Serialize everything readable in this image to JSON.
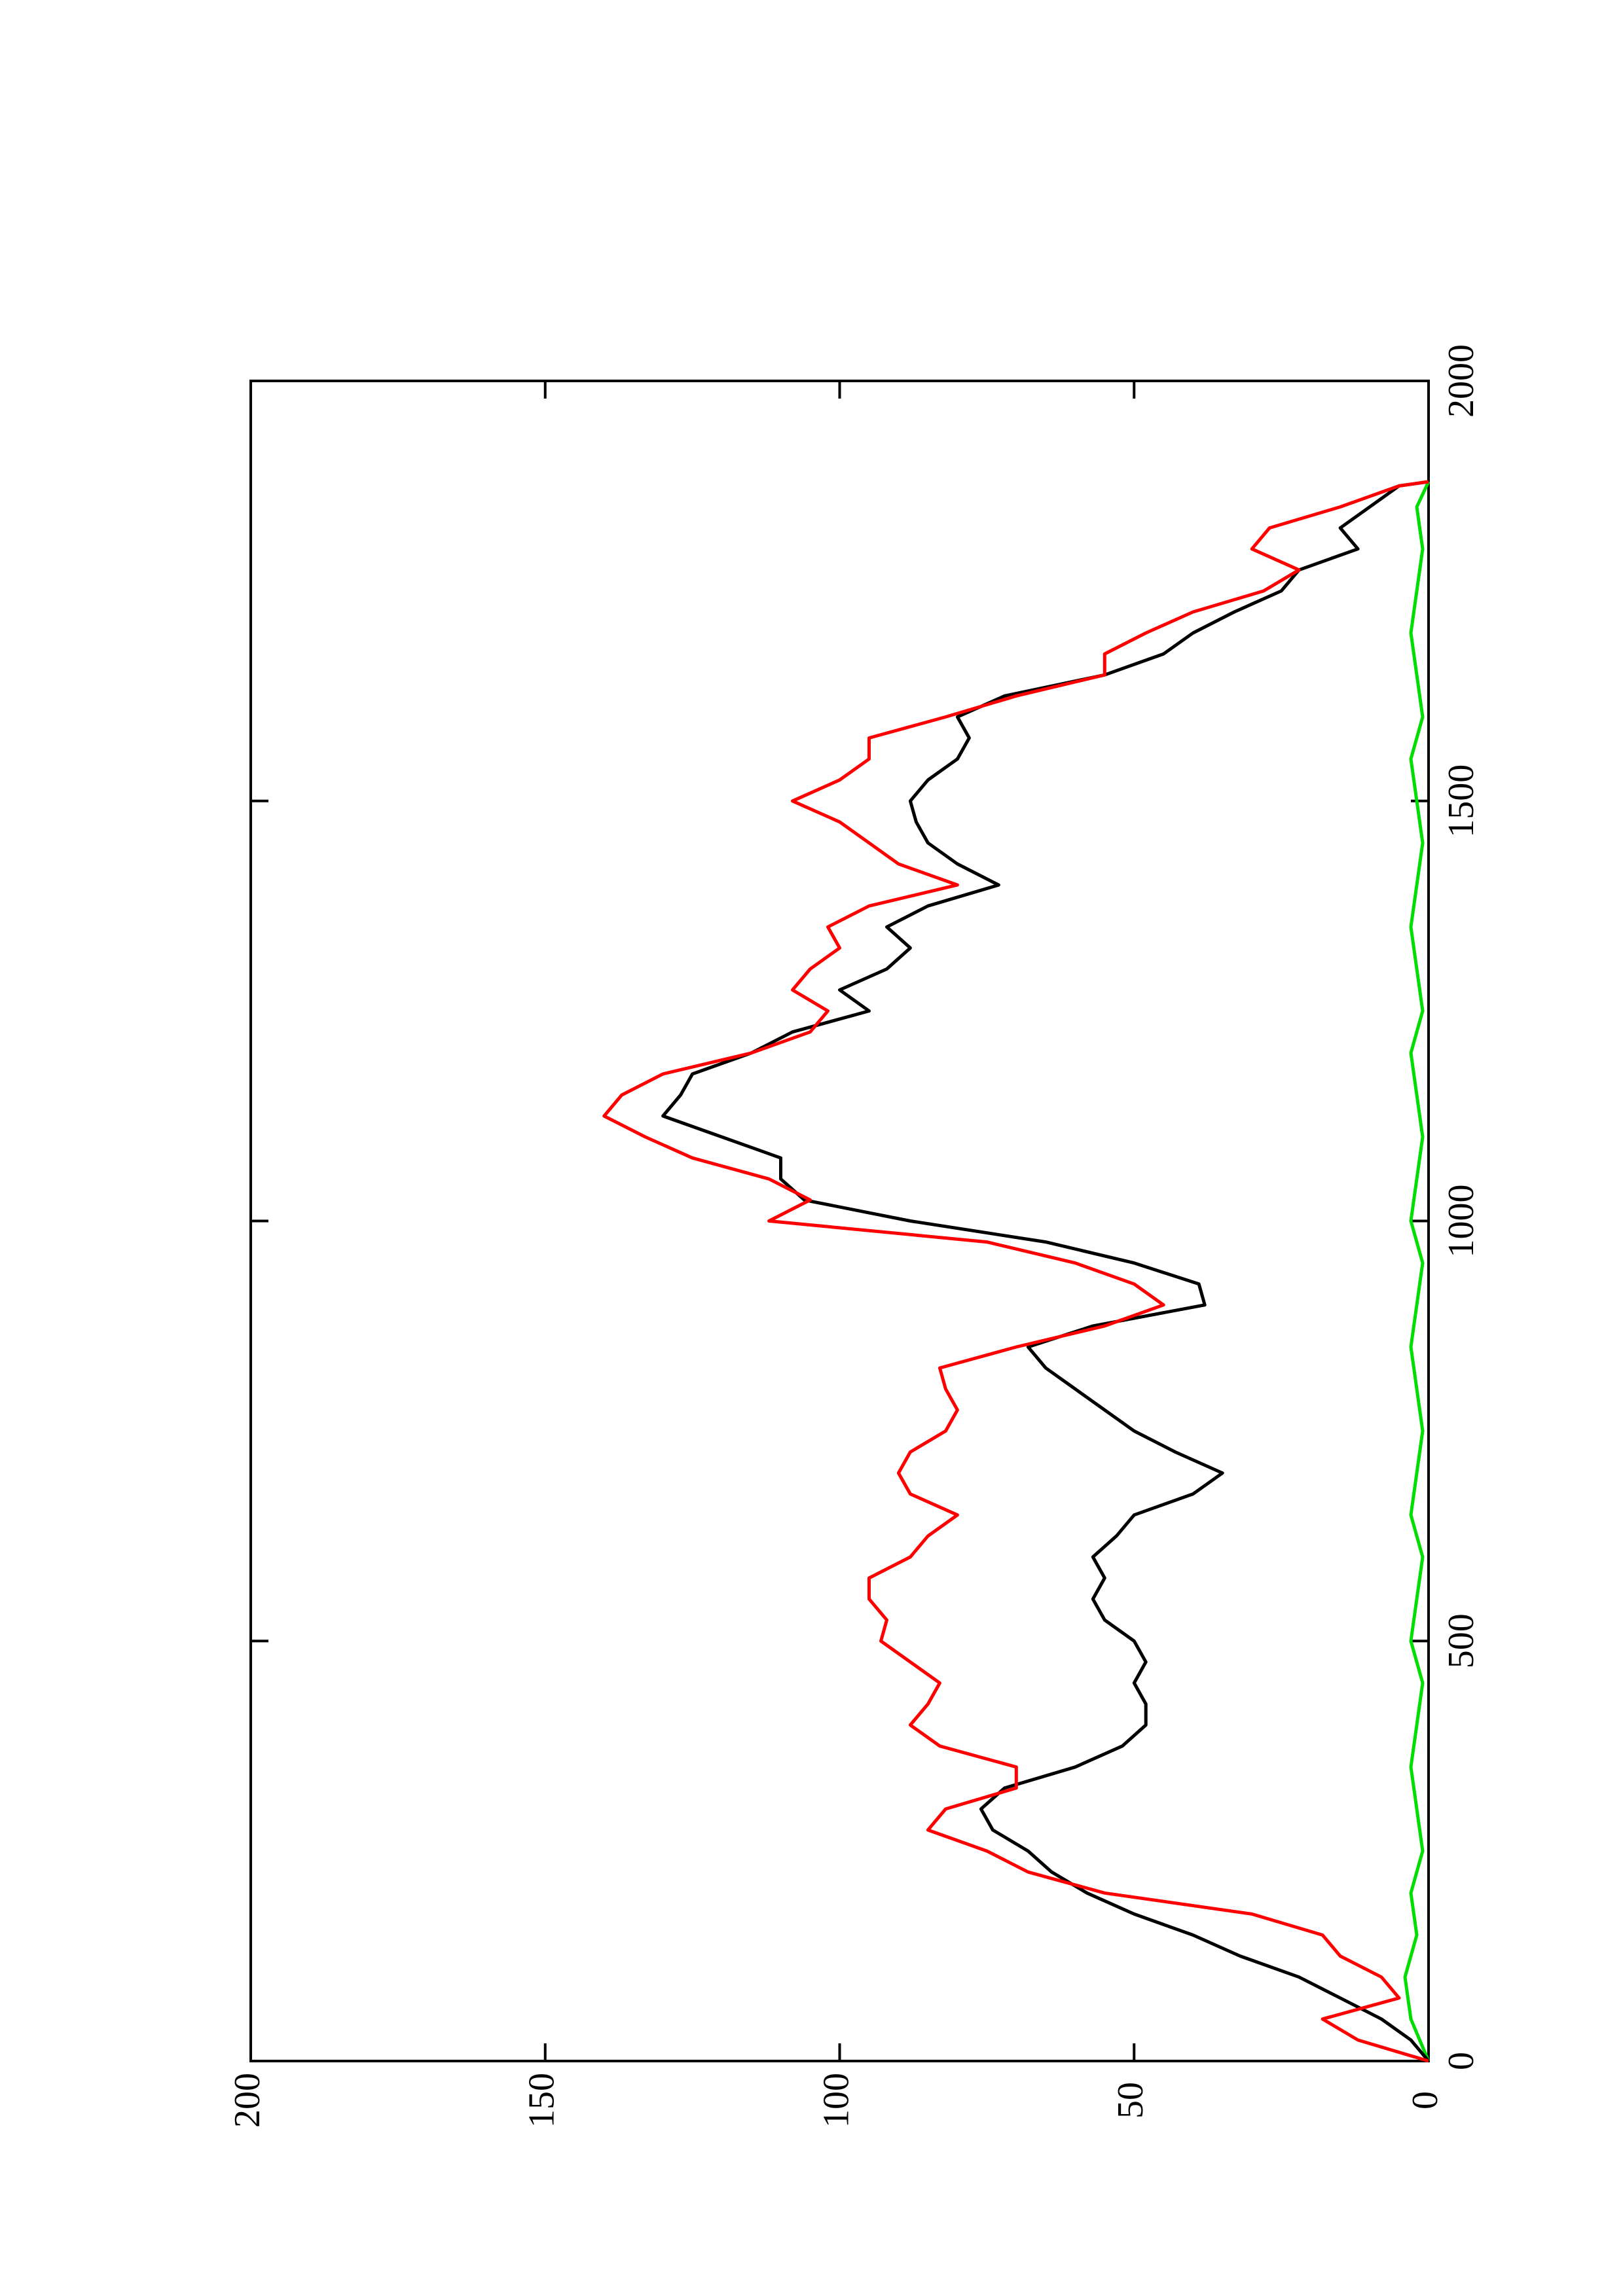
{
  "chart_data": {
    "type": "line",
    "xlim": [
      0,
      2000
    ],
    "xticks": [
      0,
      500,
      1000,
      1500,
      2000
    ],
    "ylim": [
      0,
      200
    ],
    "yticks": [
      0,
      50,
      100,
      150,
      200
    ],
    "series": [
      {
        "color": "#000000",
        "x": [
          0,
          25,
          50,
          75,
          100,
          125,
          150,
          175,
          200,
          225,
          250,
          275,
          300,
          325,
          350,
          375,
          400,
          425,
          450,
          475,
          500,
          525,
          550,
          575,
          600,
          625,
          650,
          675,
          700,
          725,
          750,
          775,
          800,
          825,
          850,
          875,
          900,
          925,
          950,
          975,
          1000,
          1025,
          1050,
          1075,
          1100,
          1125,
          1150,
          1175,
          1200,
          1225,
          1250,
          1275,
          1300,
          1325,
          1350,
          1375,
          1400,
          1425,
          1450,
          1475,
          1500,
          1525,
          1550,
          1575,
          1600,
          1625,
          1650,
          1675,
          1700,
          1725,
          1750,
          1775,
          1800,
          1825,
          1850,
          1875,
          1880
        ],
        "values": [
          0,
          3,
          8,
          15,
          22,
          32,
          40,
          50,
          58,
          64,
          68,
          74,
          76,
          72,
          60,
          52,
          48,
          48,
          50,
          48,
          50,
          55,
          57,
          55,
          57,
          53,
          50,
          40,
          35,
          43,
          50,
          55,
          60,
          65,
          68,
          57,
          38,
          39,
          50,
          65,
          88,
          106,
          110,
          110,
          120,
          130,
          127,
          125,
          115,
          108,
          95,
          100,
          92,
          88,
          92,
          85,
          73,
          80,
          85,
          87,
          88,
          85,
          80,
          78,
          80,
          72,
          55,
          45,
          40,
          33,
          25,
          22,
          12,
          15,
          10,
          5,
          0
        ]
      },
      {
        "color": "#ff0000",
        "x": [
          0,
          25,
          50,
          75,
          100,
          125,
          150,
          175,
          200,
          225,
          250,
          275,
          300,
          325,
          350,
          375,
          400,
          425,
          450,
          475,
          500,
          525,
          550,
          575,
          600,
          625,
          650,
          675,
          700,
          725,
          750,
          775,
          800,
          825,
          850,
          875,
          900,
          925,
          950,
          975,
          1000,
          1025,
          1050,
          1075,
          1100,
          1125,
          1150,
          1175,
          1200,
          1225,
          1250,
          1275,
          1300,
          1325,
          1350,
          1375,
          1400,
          1425,
          1450,
          1475,
          1500,
          1525,
          1550,
          1575,
          1600,
          1625,
          1650,
          1675,
          1700,
          1725,
          1750,
          1775,
          1800,
          1825,
          1850,
          1875,
          1880
        ],
        "values": [
          0,
          12,
          18,
          5,
          8,
          15,
          18,
          30,
          55,
          68,
          75,
          85,
          82,
          70,
          70,
          83,
          88,
          85,
          83,
          88,
          93,
          92,
          95,
          95,
          88,
          85,
          80,
          88,
          90,
          88,
          82,
          80,
          82,
          83,
          70,
          55,
          45,
          50,
          60,
          75,
          112,
          105,
          112,
          125,
          133,
          140,
          137,
          130,
          115,
          105,
          102,
          108,
          105,
          100,
          102,
          95,
          80,
          90,
          95,
          100,
          108,
          100,
          95,
          95,
          82,
          70,
          55,
          55,
          48,
          40,
          28,
          22,
          30,
          27,
          15,
          5,
          0
        ]
      },
      {
        "color": "#00dd00",
        "x": [
          0,
          50,
          100,
          150,
          200,
          250,
          300,
          350,
          400,
          450,
          500,
          550,
          600,
          650,
          700,
          750,
          800,
          850,
          900,
          950,
          1000,
          1050,
          1100,
          1150,
          1200,
          1250,
          1300,
          1350,
          1400,
          1450,
          1500,
          1550,
          1600,
          1650,
          1700,
          1750,
          1800,
          1850,
          1880
        ],
        "values": [
          0,
          3,
          4,
          2,
          3,
          1,
          2,
          3,
          2,
          1,
          3,
          2,
          1,
          3,
          2,
          1,
          2,
          3,
          2,
          1,
          3,
          2,
          1,
          2,
          3,
          1,
          2,
          3,
          2,
          1,
          2,
          3,
          1,
          2,
          3,
          2,
          1,
          2,
          0
        ]
      }
    ]
  }
}
